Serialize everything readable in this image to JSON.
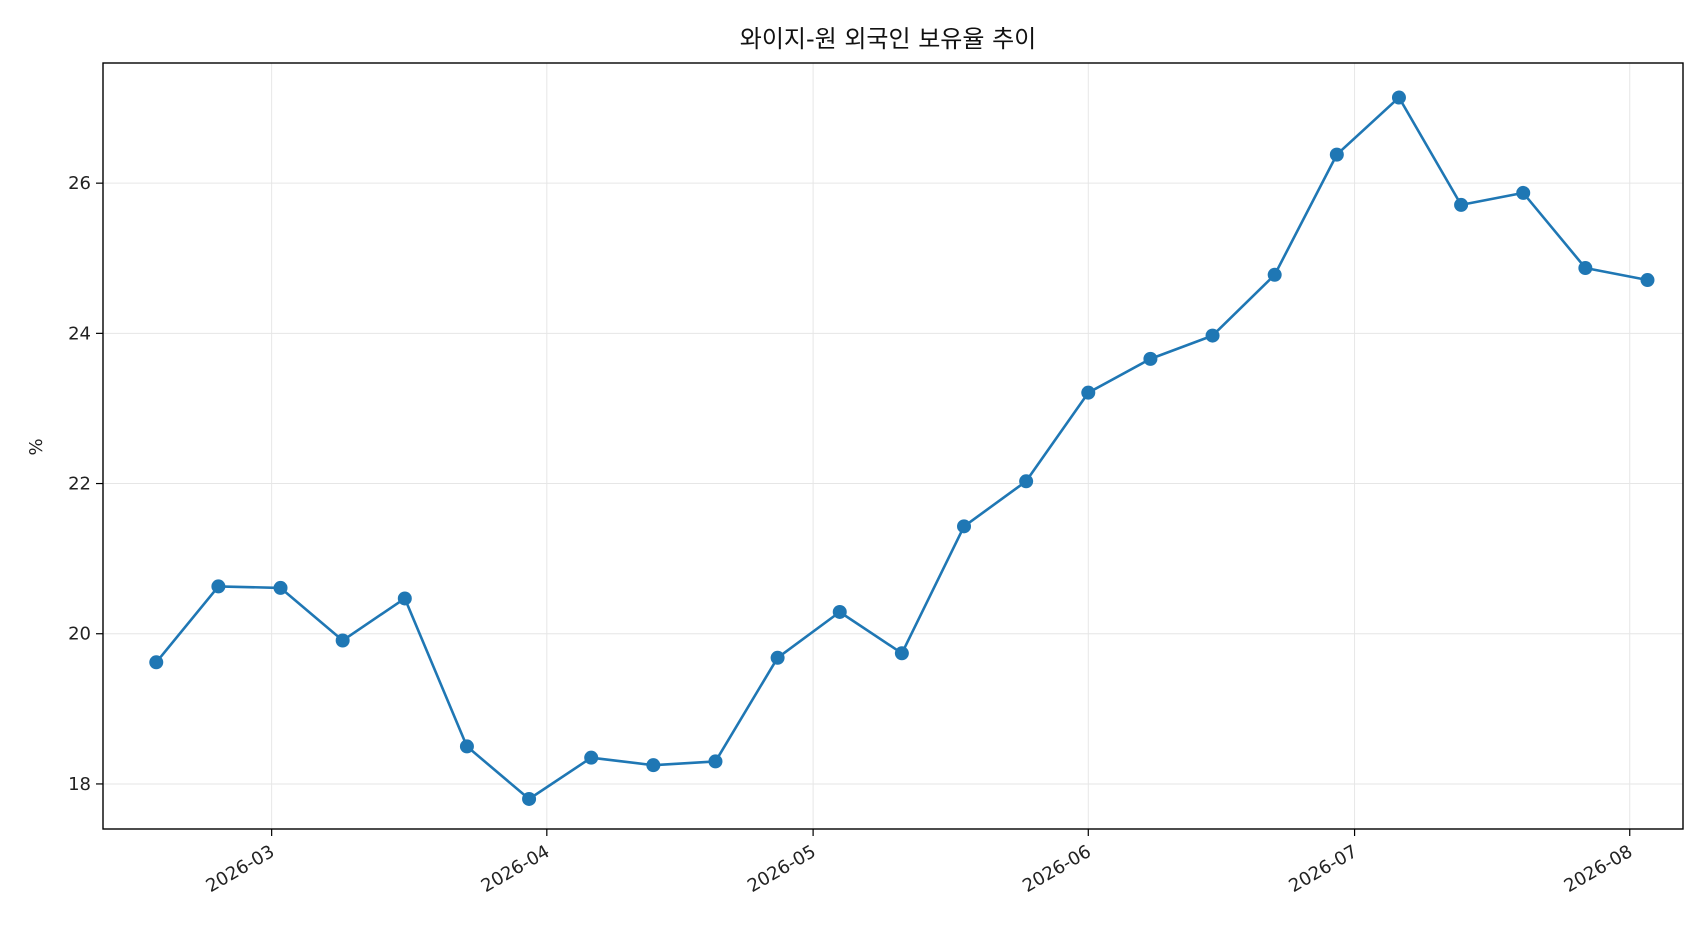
{
  "chart_data": {
    "type": "line",
    "title": "와이지-원 외국인 보유율 추이",
    "xlabel": "",
    "ylabel": "%",
    "x_ticks": [
      "2026-03",
      "2026-04",
      "2026-05",
      "2026-06",
      "2026-07",
      "2026-08"
    ],
    "y_ticks": [
      "18",
      "20",
      "22",
      "24",
      "26"
    ],
    "ylim": [
      17.4,
      27.6
    ],
    "xlim": [
      "2026-02-10",
      "2026-08-07"
    ],
    "grid": true,
    "colors": {
      "series": "#1f77b4"
    },
    "series": [
      {
        "x": [
          "2026-02-16",
          "2026-02-23",
          "2026-03-02",
          "2026-03-09",
          "2026-03-16",
          "2026-03-23",
          "2026-03-30",
          "2026-04-06",
          "2026-04-13",
          "2026-04-20",
          "2026-04-27",
          "2026-05-04",
          "2026-05-11",
          "2026-05-18",
          "2026-05-25",
          "2026-06-01",
          "2026-06-08",
          "2026-06-15",
          "2026-06-22",
          "2026-06-29",
          "2026-07-06",
          "2026-07-13",
          "2026-07-20",
          "2026-07-27",
          "2026-08-03"
        ],
        "values": [
          19.62,
          20.63,
          20.61,
          19.91,
          20.47,
          18.5,
          17.8,
          18.35,
          18.25,
          18.3,
          19.68,
          20.29,
          19.74,
          21.43,
          22.03,
          23.21,
          23.66,
          23.97,
          24.78,
          26.38,
          27.14,
          25.71,
          25.87,
          24.87,
          24.71
        ]
      }
    ]
  }
}
